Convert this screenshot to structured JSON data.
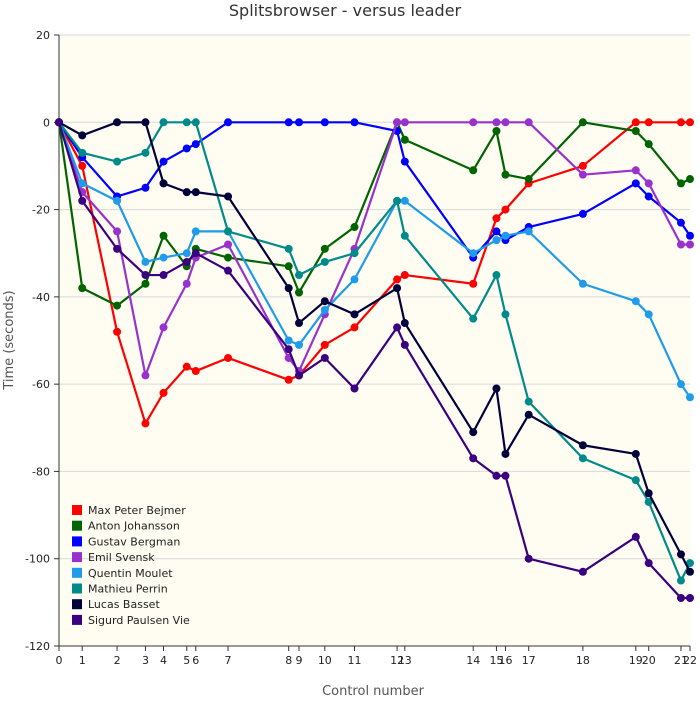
{
  "chart_data": {
    "type": "line",
    "title": "Splitsbrowser - versus leader",
    "xlabel": "Control number",
    "ylabel": "Time (seconds)",
    "ylim": [
      -120,
      20
    ],
    "yticks": [
      20,
      0,
      -20,
      -40,
      -60,
      -80,
      -100,
      -120
    ],
    "grid": "horizontal",
    "legend_position": "bottom-left",
    "background_color": "#fffdf2",
    "x": [
      0,
      1,
      2,
      3,
      4,
      5,
      6,
      7,
      8,
      9,
      10,
      11,
      12,
      13,
      14,
      15,
      16,
      17,
      18,
      19,
      20,
      21,
      22
    ],
    "xtick_labels": [
      "0",
      "1",
      "2",
      "3",
      "4",
      "5",
      "6",
      "7",
      "8",
      "9",
      "10",
      "11",
      "12",
      "13",
      "14",
      "15",
      "16",
      "17",
      "18",
      "19",
      "20",
      "21",
      "22"
    ],
    "x_time_positions": [
      0,
      18,
      45,
      67,
      81,
      99,
      106,
      131,
      178,
      186,
      206,
      229,
      262,
      268,
      321,
      339,
      346,
      364,
      406,
      447,
      457,
      482,
      489
    ],
    "series": [
      {
        "name": "Max Peter Bejmer",
        "color": "#ff0000",
        "values": [
          0,
          -10,
          -48,
          -69,
          -62,
          -56,
          -57,
          -54,
          -59,
          -58,
          -51,
          -47,
          -36,
          -35,
          -37,
          -22,
          -20,
          -14,
          -10,
          0,
          0,
          0,
          0
        ]
      },
      {
        "name": "Anton Johansson",
        "color": "#006400",
        "values": [
          0,
          -38,
          -42,
          -37,
          -26,
          -33,
          -29,
          -31,
          -33,
          -39,
          -29,
          -24,
          0,
          -4,
          -11,
          -2,
          -12,
          -13,
          0,
          -2,
          -5,
          -14,
          -13
        ]
      },
      {
        "name": "Gustav Bergman",
        "color": "#0000ff",
        "values": [
          0,
          -8,
          -17,
          -15,
          -9,
          -6,
          -5,
          0,
          0,
          0,
          0,
          0,
          -2,
          -9,
          -31,
          -25,
          -27,
          -24,
          -21,
          -14,
          -17,
          -23,
          -26
        ]
      },
      {
        "name": "Emil Svensk",
        "color": "#9932cc",
        "values": [
          0,
          -16,
          -25,
          -58,
          -47,
          -37,
          -31,
          -28,
          -54,
          -57,
          -44,
          -29,
          0,
          0,
          0,
          0,
          0,
          0,
          -12,
          -11,
          -14,
          -28,
          -28
        ]
      },
      {
        "name": "Quentin Moulet",
        "color": "#1e9bea",
        "values": [
          0,
          -14,
          -18,
          -32,
          -31,
          -30,
          -25,
          -25,
          -50,
          -51,
          -43,
          -36,
          -18,
          -18,
          -30,
          -27,
          -26,
          -25,
          -37,
          -41,
          -44,
          -60,
          -63
        ]
      },
      {
        "name": "Mathieu Perrin",
        "color": "#008b8b",
        "values": [
          0,
          -7,
          -9,
          -7,
          0,
          0,
          0,
          -25,
          -29,
          -35,
          -32,
          -30,
          -18,
          -26,
          -45,
          -35,
          -44,
          -64,
          -77,
          -82,
          -87,
          -105,
          -101
        ]
      },
      {
        "name": "Lucas Basset",
        "color": "#00003a",
        "values": [
          0,
          -3,
          0,
          0,
          -14,
          -16,
          -16,
          -17,
          -38,
          -46,
          -41,
          -44,
          -38,
          -46,
          -71,
          -61,
          -76,
          -67,
          -74,
          -76,
          -85,
          -99,
          -103
        ]
      },
      {
        "name": "Sigurd Paulsen Vie",
        "color": "#3a0080",
        "values": [
          0,
          -18,
          -29,
          -35,
          -35,
          -32,
          -30,
          -34,
          -52,
          -58,
          -54,
          -61,
          -47,
          -51,
          -77,
          -81,
          -81,
          -100,
          -103,
          -95,
          -101,
          -109,
          -109
        ]
      }
    ]
  }
}
